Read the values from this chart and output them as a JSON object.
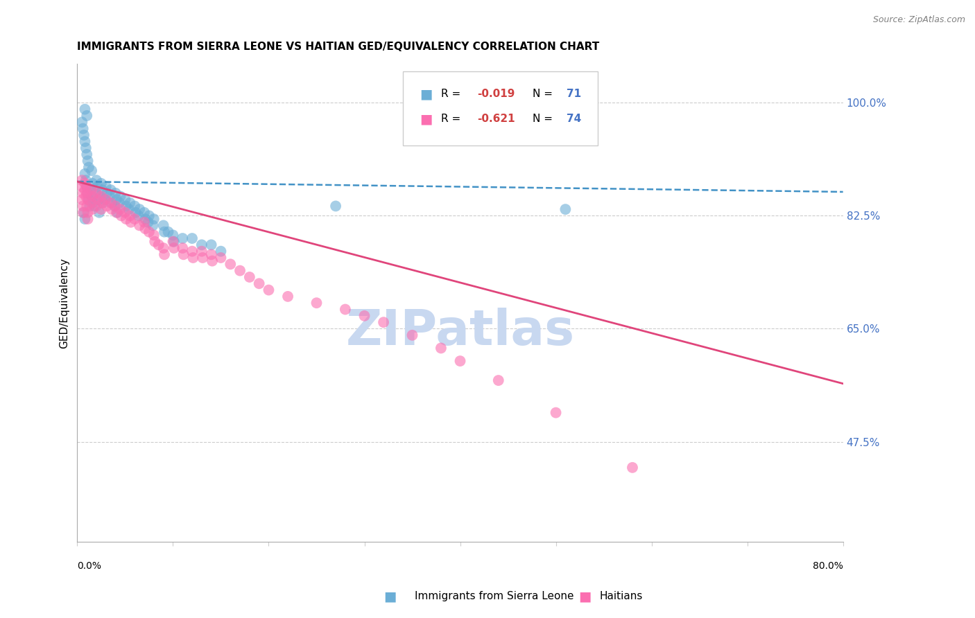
{
  "title": "IMMIGRANTS FROM SIERRA LEONE VS HAITIAN GED/EQUIVALENCY CORRELATION CHART",
  "source": "Source: ZipAtlas.com",
  "ylabel": "GED/Equivalency",
  "yticks": [
    0.475,
    0.65,
    0.825,
    1.0
  ],
  "ytick_labels": [
    "47.5%",
    "65.0%",
    "82.5%",
    "100.0%"
  ],
  "xlim": [
    0.0,
    0.8
  ],
  "ylim": [
    0.32,
    1.06
  ],
  "blue_color": "#6baed6",
  "pink_color": "#fb6eb0",
  "blue_line_color": "#4292c6",
  "pink_line_color": "#e0457b",
  "watermark": "ZIPatlas",
  "blue_scatter_x": [
    0.008,
    0.01,
    0.005,
    0.006,
    0.007,
    0.008,
    0.009,
    0.01,
    0.011,
    0.012,
    0.008,
    0.009,
    0.01,
    0.011,
    0.012,
    0.013,
    0.007,
    0.008,
    0.015,
    0.016,
    0.014,
    0.015,
    0.016,
    0.02,
    0.021,
    0.019,
    0.022,
    0.018,
    0.023,
    0.025,
    0.026,
    0.024,
    0.027,
    0.03,
    0.031,
    0.029,
    0.035,
    0.034,
    0.036,
    0.04,
    0.041,
    0.039,
    0.042,
    0.045,
    0.044,
    0.05,
    0.051,
    0.055,
    0.054,
    0.06,
    0.061,
    0.065,
    0.064,
    0.07,
    0.071,
    0.075,
    0.074,
    0.08,
    0.079,
    0.09,
    0.091,
    0.095,
    0.1,
    0.101,
    0.11,
    0.12,
    0.13,
    0.14,
    0.15,
    0.27,
    0.51
  ],
  "blue_scatter_y": [
    0.99,
    0.98,
    0.97,
    0.96,
    0.95,
    0.94,
    0.93,
    0.92,
    0.91,
    0.9,
    0.89,
    0.88,
    0.87,
    0.86,
    0.85,
    0.84,
    0.83,
    0.82,
    0.895,
    0.875,
    0.865,
    0.855,
    0.845,
    0.88,
    0.87,
    0.86,
    0.85,
    0.84,
    0.83,
    0.875,
    0.865,
    0.855,
    0.845,
    0.87,
    0.86,
    0.85,
    0.865,
    0.855,
    0.845,
    0.86,
    0.85,
    0.84,
    0.83,
    0.855,
    0.845,
    0.85,
    0.84,
    0.845,
    0.835,
    0.84,
    0.83,
    0.835,
    0.825,
    0.83,
    0.82,
    0.825,
    0.815,
    0.82,
    0.81,
    0.81,
    0.8,
    0.8,
    0.795,
    0.785,
    0.79,
    0.79,
    0.78,
    0.78,
    0.77,
    0.84,
    0.835
  ],
  "pink_scatter_x": [
    0.005,
    0.005,
    0.006,
    0.005,
    0.006,
    0.006,
    0.008,
    0.008,
    0.009,
    0.01,
    0.01,
    0.011,
    0.01,
    0.011,
    0.011,
    0.015,
    0.016,
    0.015,
    0.016,
    0.02,
    0.021,
    0.02,
    0.025,
    0.026,
    0.025,
    0.03,
    0.031,
    0.035,
    0.036,
    0.04,
    0.041,
    0.045,
    0.046,
    0.05,
    0.051,
    0.055,
    0.056,
    0.06,
    0.065,
    0.07,
    0.071,
    0.075,
    0.08,
    0.081,
    0.085,
    0.09,
    0.091,
    0.1,
    0.101,
    0.11,
    0.111,
    0.12,
    0.121,
    0.13,
    0.131,
    0.14,
    0.141,
    0.15,
    0.16,
    0.17,
    0.18,
    0.19,
    0.2,
    0.22,
    0.25,
    0.28,
    0.3,
    0.32,
    0.35,
    0.38,
    0.4,
    0.44,
    0.5,
    0.58
  ],
  "pink_scatter_y": [
    0.88,
    0.87,
    0.86,
    0.85,
    0.84,
    0.83,
    0.875,
    0.865,
    0.855,
    0.87,
    0.86,
    0.85,
    0.84,
    0.83,
    0.82,
    0.865,
    0.855,
    0.845,
    0.835,
    0.86,
    0.85,
    0.84,
    0.855,
    0.845,
    0.835,
    0.85,
    0.84,
    0.845,
    0.835,
    0.84,
    0.83,
    0.835,
    0.825,
    0.83,
    0.82,
    0.825,
    0.815,
    0.82,
    0.81,
    0.815,
    0.805,
    0.8,
    0.795,
    0.785,
    0.78,
    0.775,
    0.765,
    0.785,
    0.775,
    0.775,
    0.765,
    0.77,
    0.76,
    0.77,
    0.76,
    0.765,
    0.755,
    0.76,
    0.75,
    0.74,
    0.73,
    0.72,
    0.71,
    0.7,
    0.69,
    0.68,
    0.67,
    0.66,
    0.64,
    0.62,
    0.6,
    0.57,
    0.52,
    0.435
  ],
  "blue_trend_x": [
    0.0,
    0.8
  ],
  "blue_trend_y": [
    0.878,
    0.862
  ],
  "pink_trend_x": [
    0.0,
    0.8
  ],
  "pink_trend_y": [
    0.878,
    0.565
  ],
  "background_color": "#ffffff",
  "grid_color": "#cccccc",
  "watermark_color": "#c8d8f0",
  "watermark_fontsize": 52
}
